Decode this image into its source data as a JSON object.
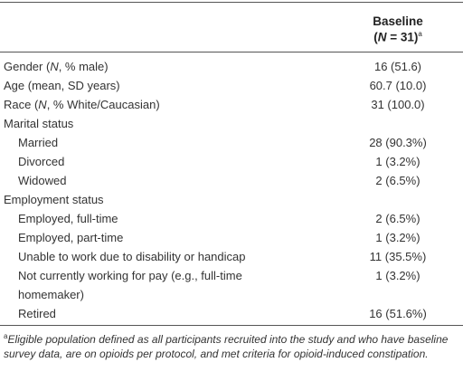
{
  "header": {
    "column_title": "Baseline",
    "column_subtitle": [
      "(",
      "N",
      " = 31)"
    ],
    "column_subtitle_note": "a"
  },
  "table": {
    "rows": [
      {
        "label": [
          "Gender (",
          "N",
          ", % male)"
        ],
        "value": "16 (51.6)"
      },
      {
        "label": [
          "Age (mean, SD years)"
        ],
        "value": "60.7 (10.0)"
      },
      {
        "label": [
          "Race (",
          "N",
          ", % White/Caucasian)"
        ],
        "value": "31 (100.0)"
      },
      {
        "label": [
          "Marital status"
        ],
        "items": [
          {
            "label": [
              "Married"
            ],
            "value": "28 (90.3%)"
          },
          {
            "label": [
              "Divorced"
            ],
            "value": "1 (3.2%)"
          },
          {
            "label": [
              "Widowed"
            ],
            "value": "2 (6.5%)"
          }
        ]
      },
      {
        "label": [
          "Employment status"
        ],
        "items": [
          {
            "label": [
              "Employed, full-time"
            ],
            "value": "2 (6.5%)"
          },
          {
            "label": [
              "Employed, part-time"
            ],
            "value": "1 (3.2%)"
          },
          {
            "label": [
              "Unable to work due to disability or handicap"
            ],
            "value": "11 (35.5%)"
          },
          {
            "label": [
              "Not currently working for pay (e.g., full-time homemaker)"
            ],
            "value": "1 (3.2%)"
          },
          {
            "label": [
              "Retired"
            ],
            "value": "16 (51.6%)"
          }
        ]
      }
    ]
  },
  "footnote": {
    "marker": "a",
    "text": "Eligible population defined as all participants recruited into the study and who have baseline survey data, are on opioids per protocol, and met criteria for opioid-induced constipation."
  }
}
